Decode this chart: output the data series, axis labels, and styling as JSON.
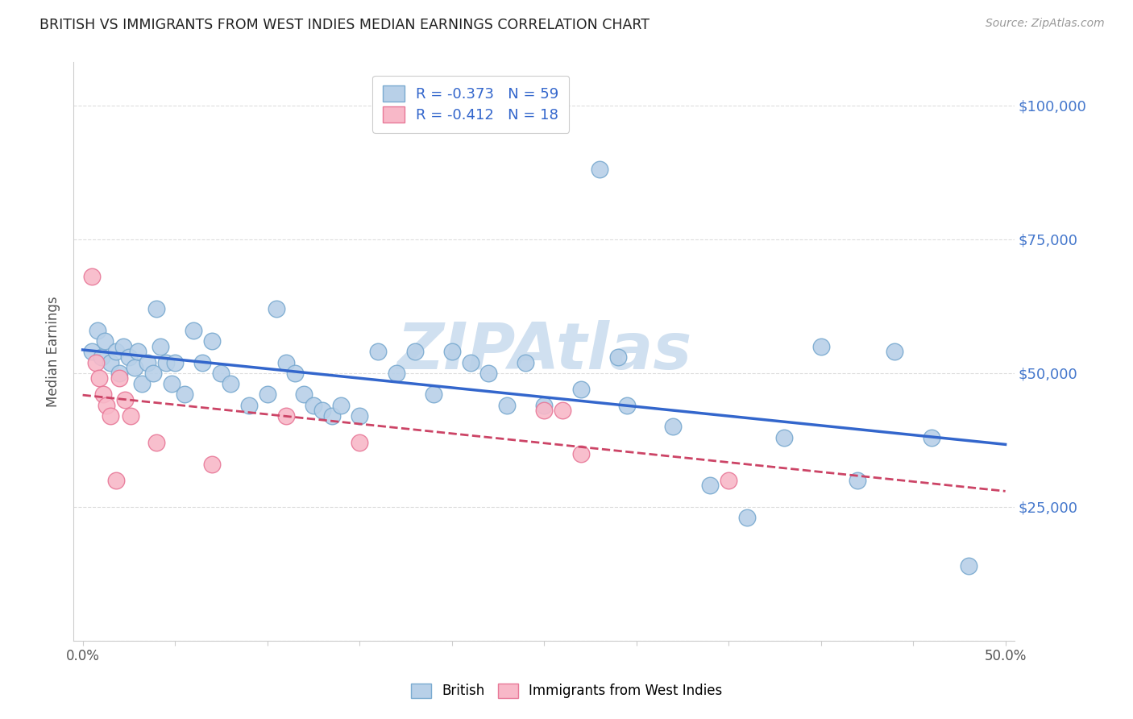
{
  "title": "BRITISH VS IMMIGRANTS FROM WEST INDIES MEDIAN EARNINGS CORRELATION CHART",
  "source": "Source: ZipAtlas.com",
  "ylabel": "Median Earnings",
  "xlabel_ticks": [
    "0.0%",
    "",
    "",
    "",
    "",
    "",
    "",
    "",
    "",
    "",
    "50.0%"
  ],
  "xlabel_vals": [
    0.0,
    0.05,
    0.1,
    0.15,
    0.2,
    0.25,
    0.3,
    0.35,
    0.4,
    0.45,
    0.5
  ],
  "yticks": [
    0,
    25000,
    50000,
    75000,
    100000
  ],
  "ytick_labels": [
    "",
    "$25,000",
    "$50,000",
    "$75,000",
    "$100,000"
  ],
  "british_R": -0.373,
  "british_N": 59,
  "westindies_R": -0.412,
  "westindies_N": 18,
  "british_color": "#b8d0e8",
  "british_edge": "#7aaad0",
  "westindies_color": "#f8b8c8",
  "westindies_edge": "#e87898",
  "trendline_british_color": "#3366cc",
  "trendline_wi_color": "#cc4466",
  "watermark": "ZIPAtlas",
  "watermark_color": "#d0e0f0",
  "background_color": "#ffffff",
  "legend_text_color": "#3366cc",
  "british_x": [
    0.005,
    0.008,
    0.01,
    0.012,
    0.015,
    0.018,
    0.02,
    0.022,
    0.025,
    0.028,
    0.03,
    0.032,
    0.035,
    0.038,
    0.04,
    0.042,
    0.045,
    0.048,
    0.05,
    0.055,
    0.06,
    0.065,
    0.07,
    0.075,
    0.08,
    0.09,
    0.1,
    0.105,
    0.11,
    0.115,
    0.12,
    0.125,
    0.13,
    0.135,
    0.14,
    0.15,
    0.16,
    0.17,
    0.18,
    0.19,
    0.2,
    0.21,
    0.22,
    0.23,
    0.24,
    0.25,
    0.27,
    0.28,
    0.29,
    0.295,
    0.32,
    0.34,
    0.36,
    0.38,
    0.4,
    0.42,
    0.44,
    0.46,
    0.48
  ],
  "british_y": [
    54000,
    58000,
    53000,
    56000,
    52000,
    54000,
    50000,
    55000,
    53000,
    51000,
    54000,
    48000,
    52000,
    50000,
    62000,
    55000,
    52000,
    48000,
    52000,
    46000,
    58000,
    52000,
    56000,
    50000,
    48000,
    44000,
    46000,
    62000,
    52000,
    50000,
    46000,
    44000,
    43000,
    42000,
    44000,
    42000,
    54000,
    50000,
    54000,
    46000,
    54000,
    52000,
    50000,
    44000,
    52000,
    44000,
    47000,
    88000,
    53000,
    44000,
    40000,
    29000,
    23000,
    38000,
    55000,
    30000,
    54000,
    38000,
    14000
  ],
  "wi_x": [
    0.005,
    0.007,
    0.009,
    0.011,
    0.013,
    0.015,
    0.018,
    0.02,
    0.023,
    0.026,
    0.04,
    0.07,
    0.11,
    0.15,
    0.25,
    0.26,
    0.27,
    0.35
  ],
  "wi_y": [
    68000,
    52000,
    49000,
    46000,
    44000,
    42000,
    30000,
    49000,
    45000,
    42000,
    37000,
    33000,
    42000,
    37000,
    43000,
    43000,
    35000,
    30000
  ]
}
